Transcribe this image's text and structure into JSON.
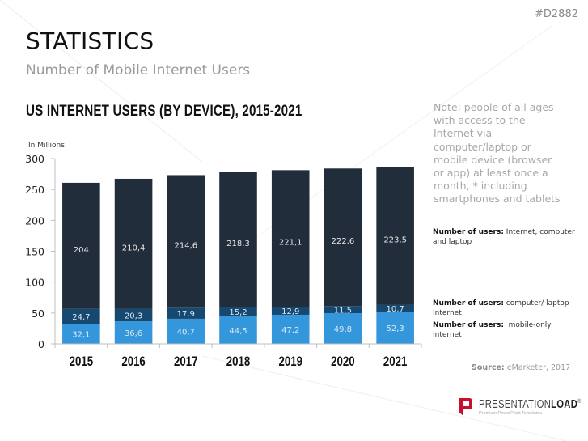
{
  "doc_id": "#D2882",
  "header": {
    "title": "STATISTICS",
    "subtitle": "Number of Mobile Internet Users"
  },
  "note": "Note: people of all ages with access to the Internet via computer/laptop or mobile device (browser or app) at least once a month, * including smartphones and tablets",
  "legend": [
    {
      "bold": "Number of users:",
      "text": " Internet, computer and laptop",
      "series": "Internet, computer and laptop"
    },
    {
      "bold": "Number of users:",
      "text": " computer/ laptop Internet",
      "series": "computer/ laptop Internet"
    },
    {
      "bold": "Number of users:",
      "text": "  mobile-only Internet",
      "series": "mobile-only Internet"
    }
  ],
  "source": {
    "label": "Source:",
    "text": " eMarketer, 2017"
  },
  "logo": {
    "name_light": "PRESENTATION",
    "name_bold": "LOAD",
    "mark": "®",
    "tagline": "Premium PowerPoint Templates"
  },
  "watermark": "PRESENTATIONLOAD",
  "colors": {
    "internet_computer_laptop": "#222d3b",
    "computer_laptop_internet": "#17486f",
    "mobile_only": "#3497db",
    "logo_red": "#c8102e"
  },
  "chart_data": {
    "type": "bar",
    "stacked": true,
    "title": "US INTERNET USERS (BY DEVICE), 2015-2021",
    "ylabel": "In Millions",
    "xlabel": "",
    "ylim": [
      0,
      300
    ],
    "yticks": [
      0,
      50,
      100,
      150,
      200,
      250,
      300
    ],
    "grid": false,
    "categories": [
      "2015",
      "2016",
      "2017",
      "2018",
      "2019",
      "2020",
      "2021"
    ],
    "series": [
      {
        "name": "mobile-only Internet",
        "color": "#3497db",
        "values": [
          32.1,
          36.6,
          40.7,
          44.5,
          47.2,
          49.8,
          52.3
        ],
        "labels": [
          "32,1",
          "36,6",
          "40,7",
          "44,5",
          "47,2",
          "49,8",
          "52,3"
        ]
      },
      {
        "name": "computer/ laptop Internet",
        "color": "#17486f",
        "values": [
          24.7,
          20.3,
          17.9,
          15.2,
          12.9,
          11.5,
          10.7
        ],
        "labels": [
          "24,7",
          "20,3",
          "17,9",
          "15,2",
          "12,9",
          "11,5",
          "10,7"
        ]
      },
      {
        "name": "Internet, computer and laptop",
        "color": "#222d3b",
        "values": [
          204,
          210.4,
          214.6,
          218.3,
          221.1,
          222.6,
          223.5
        ],
        "labels": [
          "204",
          "210,4",
          "214,6",
          "218,3",
          "221,1",
          "222,6",
          "223,5"
        ]
      }
    ],
    "legend_position": "right"
  }
}
